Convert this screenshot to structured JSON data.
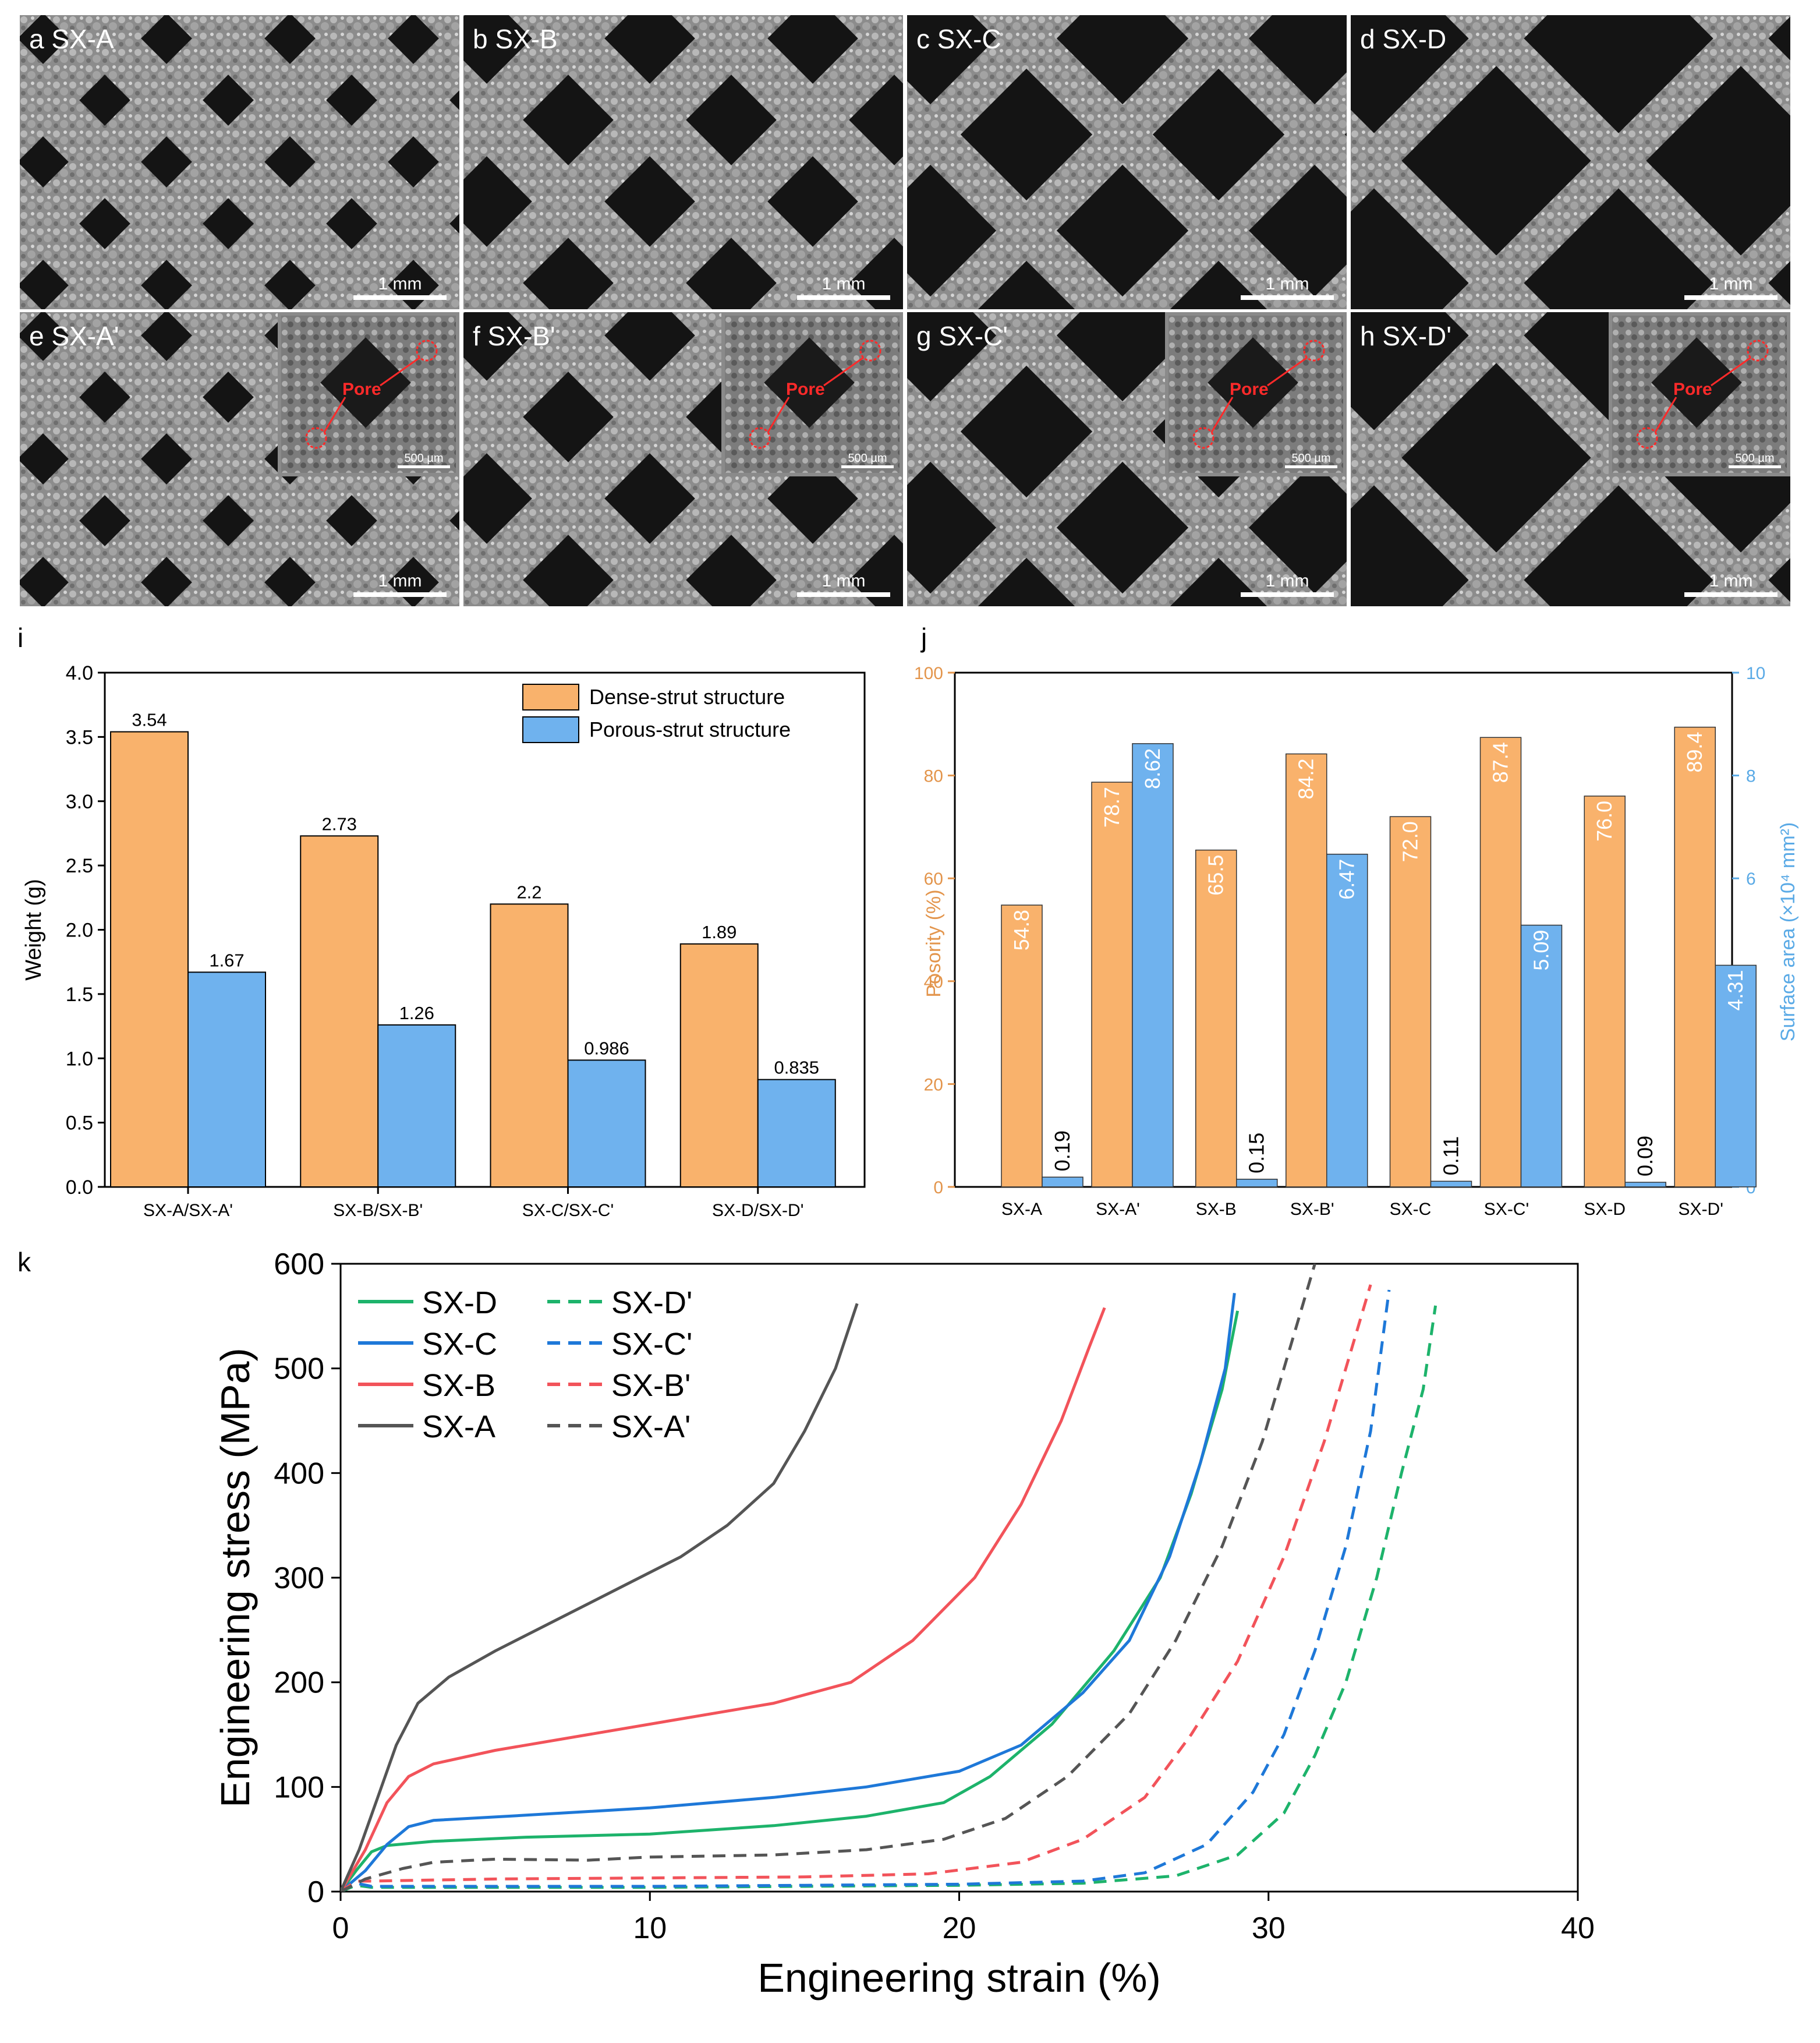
{
  "figure": {
    "panel_labels": {
      "i": "i",
      "j": "j",
      "k": "k"
    }
  },
  "sem_panels": [
    {
      "letter": "a",
      "name": "SX-A",
      "scale": "1 mm",
      "pores": "small",
      "inset": null
    },
    {
      "letter": "b",
      "name": "SX-B",
      "scale": "1 mm",
      "pores": "medium",
      "inset": null
    },
    {
      "letter": "c",
      "name": "SX-C",
      "scale": "1 mm",
      "pores": "large",
      "inset": null
    },
    {
      "letter": "d",
      "name": "SX-D",
      "scale": "1 mm",
      "pores": "xlarge",
      "inset": null
    },
    {
      "letter": "e",
      "name": "SX-A'",
      "scale": "1 mm",
      "pores": "small",
      "inset": {
        "pore_label": "Pore",
        "scale": "500 µm"
      }
    },
    {
      "letter": "f",
      "name": "SX-B'",
      "scale": "1 mm",
      "pores": "medium",
      "inset": {
        "pore_label": "Pore",
        "scale": "500 µm"
      }
    },
    {
      "letter": "g",
      "name": "SX-C'",
      "scale": "1 mm",
      "pores": "large",
      "inset": {
        "pore_label": "Pore",
        "scale": "500 µm"
      }
    },
    {
      "letter": "h",
      "name": "SX-D'",
      "scale": "1 mm",
      "pores": "xlarge",
      "inset": {
        "pore_label": "Pore",
        "scale": "500 µm"
      }
    }
  ],
  "chart_data": [
    {
      "id": "i",
      "type": "bar",
      "categories": [
        "SX-A/SX-A'",
        "SX-B/SX-B'",
        "SX-C/SX-C'",
        "SX-D/SX-D'"
      ],
      "series": [
        {
          "name": "Dense-strut structure",
          "color": "#f9b26c",
          "values": [
            3.54,
            2.73,
            2.2,
            1.89
          ],
          "labels": [
            "3.54",
            "2.73",
            "2.2",
            "1.89"
          ]
        },
        {
          "name": "Porous-strut structure",
          "color": "#6fb2ee",
          "values": [
            1.67,
            1.26,
            0.986,
            0.835
          ],
          "labels": [
            "1.67",
            "1.26",
            "0.986",
            "0.835"
          ]
        }
      ],
      "ylabel": "Weight (g)",
      "ylim": [
        0,
        4.0
      ],
      "yticks": [
        "0.0",
        "0.5",
        "1.0",
        "1.5",
        "2.0",
        "2.5",
        "3.0",
        "3.5",
        "4.0"
      ],
      "legend": "top-right"
    },
    {
      "id": "j",
      "type": "bar",
      "categories": [
        "SX-A",
        "SX-A'",
        "SX-B",
        "SX-B'",
        "SX-C",
        "SX-C'",
        "SX-D",
        "SX-D'"
      ],
      "series": [
        {
          "name": "Posority (%)",
          "axis": "left",
          "color": "#f9b26c",
          "values": [
            54.8,
            78.7,
            65.5,
            84.2,
            72.0,
            87.4,
            76.0,
            89.4
          ],
          "labels": [
            "54.8",
            "78.7",
            "65.5",
            "84.2",
            "72.0",
            "87.4",
            "76.0",
            "89.4"
          ]
        },
        {
          "name": "Surface area (×10⁴ mm²)",
          "axis": "right",
          "color": "#6fb2ee",
          "values": [
            0.19,
            8.62,
            0.15,
            6.47,
            0.11,
            5.09,
            0.09,
            4.31
          ],
          "labels": [
            "0.19",
            "8.62",
            "0.15",
            "6.47",
            "0.11",
            "5.09",
            "0.09",
            "4.31"
          ]
        }
      ],
      "ylabel": "Posority (%)",
      "ylabel_color": "#e3954c",
      "y2label": "Surface area (×10⁴ mm²)",
      "y2label_color": "#5aaae6",
      "ylim": [
        0,
        100
      ],
      "y2lim": [
        0,
        10
      ],
      "yticks": [
        "0",
        "20",
        "40",
        "60",
        "80",
        "100"
      ],
      "y2ticks": [
        "0",
        "2",
        "4",
        "6",
        "8",
        "10"
      ]
    },
    {
      "id": "k",
      "type": "line",
      "xlabel": "Engineering strain (%)",
      "ylabel": "Engineering stress (MPa)",
      "xlim": [
        0,
        40
      ],
      "ylim": [
        0,
        600
      ],
      "xticks": [
        "0",
        "10",
        "20",
        "30",
        "40"
      ],
      "yticks": [
        "0",
        "100",
        "200",
        "300",
        "400",
        "500",
        "600"
      ],
      "series": [
        {
          "name": "SX-D",
          "color": "#1db36b",
          "dash": false,
          "points": [
            [
              0,
              0
            ],
            [
              0.5,
              20
            ],
            [
              1,
              38
            ],
            [
              1.5,
              44
            ],
            [
              3,
              48
            ],
            [
              6,
              52
            ],
            [
              10,
              55
            ],
            [
              14,
              63
            ],
            [
              17,
              72
            ],
            [
              19.5,
              85
            ],
            [
              21,
              110
            ],
            [
              23,
              160
            ],
            [
              25,
              230
            ],
            [
              26.5,
              300
            ],
            [
              27.5,
              380
            ],
            [
              28.5,
              480
            ],
            [
              29,
              555
            ]
          ]
        },
        {
          "name": "SX-D'",
          "color": "#1db36b",
          "dash": true,
          "points": [
            [
              0,
              0
            ],
            [
              0.5,
              6
            ],
            [
              1,
              4
            ],
            [
              5,
              4
            ],
            [
              10,
              4
            ],
            [
              15,
              5
            ],
            [
              20,
              6
            ],
            [
              24,
              8
            ],
            [
              27,
              15
            ],
            [
              29,
              35
            ],
            [
              30.5,
              75
            ],
            [
              31.5,
              130
            ],
            [
              32.5,
              200
            ],
            [
              33.5,
              300
            ],
            [
              34.3,
              400
            ],
            [
              35,
              480
            ],
            [
              35.4,
              560
            ]
          ]
        },
        {
          "name": "SX-C",
          "color": "#1e78d8",
          "dash": false,
          "points": [
            [
              0,
              0
            ],
            [
              0.8,
              20
            ],
            [
              1.5,
              45
            ],
            [
              2.2,
              62
            ],
            [
              3,
              68
            ],
            [
              6,
              73
            ],
            [
              10,
              80
            ],
            [
              14,
              90
            ],
            [
              17,
              100
            ],
            [
              20,
              115
            ],
            [
              22,
              140
            ],
            [
              24,
              190
            ],
            [
              25.5,
              240
            ],
            [
              26.8,
              320
            ],
            [
              27.8,
              410
            ],
            [
              28.6,
              500
            ],
            [
              28.9,
              572
            ]
          ]
        },
        {
          "name": "SX-C'",
          "color": "#1e78d8",
          "dash": true,
          "points": [
            [
              0,
              0
            ],
            [
              0.5,
              8
            ],
            [
              1,
              5
            ],
            [
              5,
              5
            ],
            [
              10,
              5
            ],
            [
              15,
              6
            ],
            [
              20,
              7
            ],
            [
              24,
              10
            ],
            [
              26,
              18
            ],
            [
              28,
              45
            ],
            [
              29.5,
              95
            ],
            [
              30.5,
              150
            ],
            [
              31.5,
              230
            ],
            [
              32.5,
              330
            ],
            [
              33.3,
              440
            ],
            [
              33.9,
              575
            ]
          ]
        },
        {
          "name": "SX-B",
          "color": "#f2535a",
          "dash": false,
          "points": [
            [
              0,
              0
            ],
            [
              0.8,
              40
            ],
            [
              1.5,
              85
            ],
            [
              2.2,
              110
            ],
            [
              3,
              122
            ],
            [
              5,
              135
            ],
            [
              8,
              150
            ],
            [
              11,
              165
            ],
            [
              14,
              180
            ],
            [
              16.5,
              200
            ],
            [
              18.5,
              240
            ],
            [
              20.5,
              300
            ],
            [
              22,
              370
            ],
            [
              23.3,
              450
            ],
            [
              24.2,
              520
            ],
            [
              24.7,
              558
            ]
          ]
        },
        {
          "name": "SX-B'",
          "color": "#f2535a",
          "dash": true,
          "points": [
            [
              0,
              0
            ],
            [
              0.5,
              10
            ],
            [
              1,
              10
            ],
            [
              5,
              12
            ],
            [
              10,
              13
            ],
            [
              15,
              14
            ],
            [
              19,
              17
            ],
            [
              22,
              28
            ],
            [
              24,
              50
            ],
            [
              26,
              90
            ],
            [
              27.5,
              150
            ],
            [
              29,
              220
            ],
            [
              30.5,
              320
            ],
            [
              31.8,
              430
            ],
            [
              32.8,
              530
            ],
            [
              33.3,
              580
            ]
          ]
        },
        {
          "name": "SX-A",
          "color": "#555555",
          "dash": false,
          "points": [
            [
              0,
              0
            ],
            [
              0.6,
              40
            ],
            [
              1.2,
              90
            ],
            [
              1.8,
              140
            ],
            [
              2.5,
              180
            ],
            [
              3.5,
              205
            ],
            [
              5,
              230
            ],
            [
              7,
              260
            ],
            [
              9,
              290
            ],
            [
              11,
              320
            ],
            [
              12.5,
              350
            ],
            [
              14,
              390
            ],
            [
              15,
              440
            ],
            [
              16,
              500
            ],
            [
              16.7,
              562
            ]
          ]
        },
        {
          "name": "SX-A'",
          "color": "#555555",
          "dash": true,
          "points": [
            [
              0,
              0
            ],
            [
              0.8,
              12
            ],
            [
              2,
              22
            ],
            [
              3,
              28
            ],
            [
              5,
              31
            ],
            [
              8,
              30
            ],
            [
              10,
              33
            ],
            [
              14,
              35
            ],
            [
              17,
              40
            ],
            [
              19.5,
              50
            ],
            [
              21.5,
              70
            ],
            [
              23.5,
              110
            ],
            [
              25.5,
              170
            ],
            [
              27,
              240
            ],
            [
              28.5,
              330
            ],
            [
              29.8,
              430
            ],
            [
              31,
              550
            ],
            [
              31.5,
              600
            ]
          ]
        }
      ],
      "legend": "top-left"
    }
  ]
}
